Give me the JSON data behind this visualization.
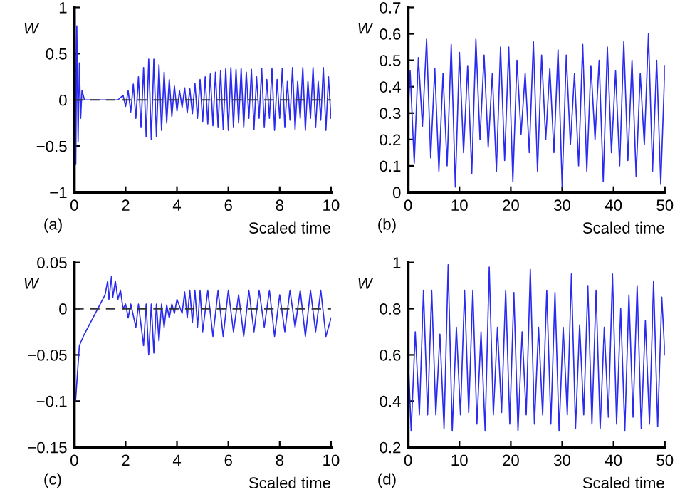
{
  "chart_data": [
    {
      "type": "line",
      "xlabel": "Scaled time",
      "ylabel": "W",
      "annotations": [
        "(a)"
      ],
      "xlim": [
        0,
        10
      ],
      "ylim": [
        -1,
        1
      ],
      "xticks": [
        0,
        2,
        4,
        6,
        8,
        10
      ],
      "yticks": [
        -1,
        -0.5,
        0,
        0.5,
        1
      ],
      "ref_lines": [
        {
          "axis": "y",
          "value": 0,
          "color": "#333333",
          "line_style": "dashed"
        }
      ],
      "series": [
        {
          "color": "#2b2bf0",
          "x": [
            0,
            0.03,
            0.06,
            0.1,
            0.15,
            0.2,
            0.25,
            0.3,
            0.4,
            1.0,
            1.7,
            1.9,
            2.0,
            2.1,
            2.2,
            2.3,
            2.4,
            2.5,
            2.6,
            2.7,
            2.8,
            2.9,
            3.0,
            3.1,
            3.2,
            3.3,
            3.4,
            3.5,
            3.6,
            3.7,
            3.8,
            3.9,
            4.0,
            4.1,
            4.2,
            4.3,
            4.4,
            4.5,
            4.6,
            4.7,
            4.8,
            4.9,
            5.0,
            5.1,
            5.2,
            5.3,
            5.4,
            5.5,
            5.6,
            5.7,
            5.8,
            5.9,
            6.0,
            6.1,
            6.2,
            6.3,
            6.4,
            6.5,
            6.6,
            6.7,
            6.8,
            6.9,
            7.0,
            7.1,
            7.2,
            7.3,
            7.4,
            7.5,
            7.6,
            7.7,
            7.8,
            7.9,
            8.0,
            8.1,
            8.2,
            8.3,
            8.4,
            8.5,
            8.6,
            8.7,
            8.8,
            8.9,
            9.0,
            9.1,
            9.2,
            9.3,
            9.4,
            9.5,
            9.6,
            9.7,
            9.8,
            9.9,
            10.0
          ],
          "values": [
            0,
            1.0,
            -0.7,
            0.8,
            -0.45,
            0.4,
            -0.2,
            0.1,
            0,
            0,
            0,
            0.05,
            -0.07,
            0.1,
            -0.13,
            0.17,
            -0.2,
            0.25,
            -0.3,
            0.35,
            -0.4,
            0.44,
            -0.43,
            0.44,
            -0.4,
            0.38,
            -0.33,
            0.3,
            -0.25,
            0.22,
            -0.18,
            0.15,
            -0.12,
            0.1,
            -0.08,
            0.13,
            -0.14,
            0.12,
            -0.15,
            0.18,
            -0.2,
            0.22,
            -0.24,
            0.25,
            -0.26,
            0.28,
            -0.28,
            0.3,
            -0.3,
            0.32,
            -0.32,
            0.34,
            -0.33,
            0.35,
            -0.3,
            0.33,
            -0.25,
            0.34,
            -0.3,
            0.3,
            -0.2,
            0.33,
            -0.32,
            0.25,
            -0.2,
            0.34,
            -0.3,
            0.22,
            -0.2,
            0.34,
            -0.33,
            0.22,
            -0.2,
            0.34,
            -0.3,
            0.2,
            -0.22,
            0.35,
            -0.32,
            0.2,
            -0.2,
            0.35,
            -0.33,
            0.2,
            -0.2,
            0.35,
            -0.3,
            0.2,
            -0.22,
            0.35,
            -0.33,
            0.25,
            -0.2
          ]
        }
      ]
    },
    {
      "type": "line",
      "xlabel": "Scaled time",
      "ylabel": "W",
      "annotations": [
        "(b)"
      ],
      "xlim": [
        0,
        50
      ],
      "ylim": [
        0,
        0.7
      ],
      "xticks": [
        0,
        10,
        20,
        30,
        40,
        50
      ],
      "yticks": [
        0,
        0.1,
        0.2,
        0.3,
        0.4,
        0.5,
        0.6,
        0.7
      ],
      "series": [
        {
          "color": "#2b2bf0",
          "x": [
            0,
            0.4,
            1.2,
            2.0,
            2.8,
            3.6,
            4.4,
            5.2,
            6.0,
            6.8,
            7.6,
            8.4,
            9.2,
            10.0,
            10.8,
            11.6,
            12.4,
            13.2,
            14.0,
            14.8,
            15.6,
            16.4,
            17.2,
            18.0,
            18.8,
            19.6,
            20.4,
            21.2,
            22.0,
            22.8,
            23.6,
            24.4,
            25.2,
            26.0,
            26.8,
            27.6,
            28.4,
            29.2,
            30.0,
            30.8,
            31.6,
            32.4,
            33.2,
            34.0,
            34.8,
            35.6,
            36.4,
            37.2,
            38.0,
            38.8,
            39.6,
            40.4,
            41.2,
            42.0,
            42.8,
            43.6,
            44.4,
            45.2,
            46.0,
            46.8,
            47.6,
            48.4,
            49.2,
            50.0
          ],
          "values": [
            0.3,
            0.46,
            0.11,
            0.51,
            0.25,
            0.58,
            0.13,
            0.47,
            0.08,
            0.45,
            0.1,
            0.56,
            0.02,
            0.53,
            0.15,
            0.48,
            0.07,
            0.58,
            0.2,
            0.52,
            0.17,
            0.45,
            0.08,
            0.55,
            0.12,
            0.55,
            0.04,
            0.5,
            0.22,
            0.45,
            0.15,
            0.57,
            0.08,
            0.52,
            0.2,
            0.47,
            0.15,
            0.54,
            0.02,
            0.52,
            0.18,
            0.45,
            0.1,
            0.56,
            0.08,
            0.48,
            0.2,
            0.5,
            0.04,
            0.55,
            0.15,
            0.46,
            0.1,
            0.57,
            0.12,
            0.5,
            0.06,
            0.45,
            0.18,
            0.6,
            0.08,
            0.5,
            0.03,
            0.48
          ]
        }
      ]
    },
    {
      "type": "line",
      "xlabel": "Scaled time",
      "ylabel": "W",
      "annotations": [
        "(c)"
      ],
      "xlim": [
        0,
        10
      ],
      "ylim": [
        -0.15,
        0.05
      ],
      "xticks": [
        0,
        2,
        4,
        6,
        8,
        10
      ],
      "yticks": [
        -0.15,
        -0.1,
        -0.05,
        0,
        0.05
      ],
      "ref_lines": [
        {
          "axis": "y",
          "value": 0,
          "color": "#333333",
          "line_style": "dashed"
        }
      ],
      "series": [
        {
          "color": "#2b2bf0",
          "x": [
            0.05,
            0.1,
            0.2,
            0.35,
            1.2,
            1.3,
            1.35,
            1.45,
            1.5,
            1.6,
            1.7,
            1.8,
            1.9,
            2.0,
            2.1,
            2.2,
            2.4,
            2.5,
            2.7,
            2.8,
            2.9,
            3.0,
            3.1,
            3.2,
            3.3,
            3.4,
            3.5,
            3.6,
            3.7,
            3.8,
            3.9,
            4.0,
            4.2,
            4.3,
            4.4,
            4.5,
            4.6,
            4.7,
            4.8,
            4.9,
            5.0,
            5.2,
            5.4,
            5.6,
            5.8,
            6.0,
            6.2,
            6.4,
            6.6,
            6.8,
            7.0,
            7.2,
            7.4,
            7.6,
            7.8,
            8.0,
            8.2,
            8.4,
            8.6,
            8.8,
            9.0,
            9.2,
            9.4,
            9.6,
            9.8,
            10.0
          ],
          "values": [
            -0.1,
            -0.08,
            -0.04,
            -0.03,
            0.015,
            0.03,
            0.01,
            0.035,
            0.012,
            0.03,
            0.01,
            0.02,
            0.0,
            0.005,
            -0.01,
            0.005,
            -0.02,
            0.005,
            -0.04,
            0.005,
            -0.05,
            0.005,
            -0.048,
            0.005,
            -0.035,
            0.005,
            -0.02,
            0.004,
            -0.01,
            0.005,
            -0.005,
            0.01,
            -0.005,
            0.018,
            -0.01,
            0.02,
            -0.015,
            0.02,
            -0.02,
            0.02,
            -0.025,
            0.02,
            -0.03,
            0.02,
            -0.03,
            0.02,
            -0.025,
            0.015,
            -0.03,
            0.02,
            -0.025,
            0.02,
            -0.02,
            0.02,
            -0.03,
            0.015,
            -0.025,
            0.02,
            -0.02,
            0.02,
            -0.03,
            0.02,
            -0.025,
            0.02,
            -0.03,
            -0.01
          ]
        }
      ]
    },
    {
      "type": "line",
      "xlabel": "Scaled time",
      "ylabel": "W",
      "annotations": [
        "(d)"
      ],
      "xlim": [
        0,
        50
      ],
      "ylim": [
        0.2,
        1
      ],
      "xticks": [
        0,
        10,
        20,
        30,
        40,
        50
      ],
      "yticks": [
        0.2,
        0.4,
        0.6,
        0.8,
        1
      ],
      "series": [
        {
          "color": "#2b2bf0",
          "x": [
            0,
            0.6,
            1.4,
            2.2,
            3.0,
            3.8,
            4.6,
            5.4,
            6.2,
            7.0,
            7.8,
            8.6,
            9.4,
            10.2,
            11.0,
            11.8,
            12.6,
            13.4,
            14.2,
            15.0,
            15.8,
            16.6,
            17.4,
            18.2,
            19.0,
            19.8,
            20.6,
            21.4,
            22.2,
            23.0,
            23.8,
            24.6,
            25.4,
            26.2,
            27.0,
            27.8,
            28.6,
            29.4,
            30.2,
            31.0,
            31.8,
            32.6,
            33.4,
            34.2,
            35.0,
            35.8,
            36.6,
            37.4,
            38.2,
            39.0,
            39.8,
            40.6,
            41.4,
            42.2,
            43.0,
            43.8,
            44.6,
            45.4,
            46.2,
            47.0,
            47.8,
            48.6,
            49.4,
            50.0
          ],
          "values": [
            0.6,
            0.27,
            0.7,
            0.34,
            0.88,
            0.34,
            0.88,
            0.34,
            0.69,
            0.28,
            0.99,
            0.27,
            0.72,
            0.34,
            0.88,
            0.35,
            0.88,
            0.3,
            0.7,
            0.27,
            0.98,
            0.34,
            0.72,
            0.35,
            0.88,
            0.3,
            0.87,
            0.27,
            0.7,
            0.34,
            0.97,
            0.3,
            0.72,
            0.34,
            0.88,
            0.3,
            0.87,
            0.27,
            0.72,
            0.34,
            0.95,
            0.28,
            0.73,
            0.34,
            0.9,
            0.3,
            0.88,
            0.28,
            0.72,
            0.33,
            0.95,
            0.3,
            0.8,
            0.27,
            0.86,
            0.33,
            0.9,
            0.28,
            0.75,
            0.3,
            0.92,
            0.29,
            0.85,
            0.6
          ]
        }
      ]
    }
  ]
}
